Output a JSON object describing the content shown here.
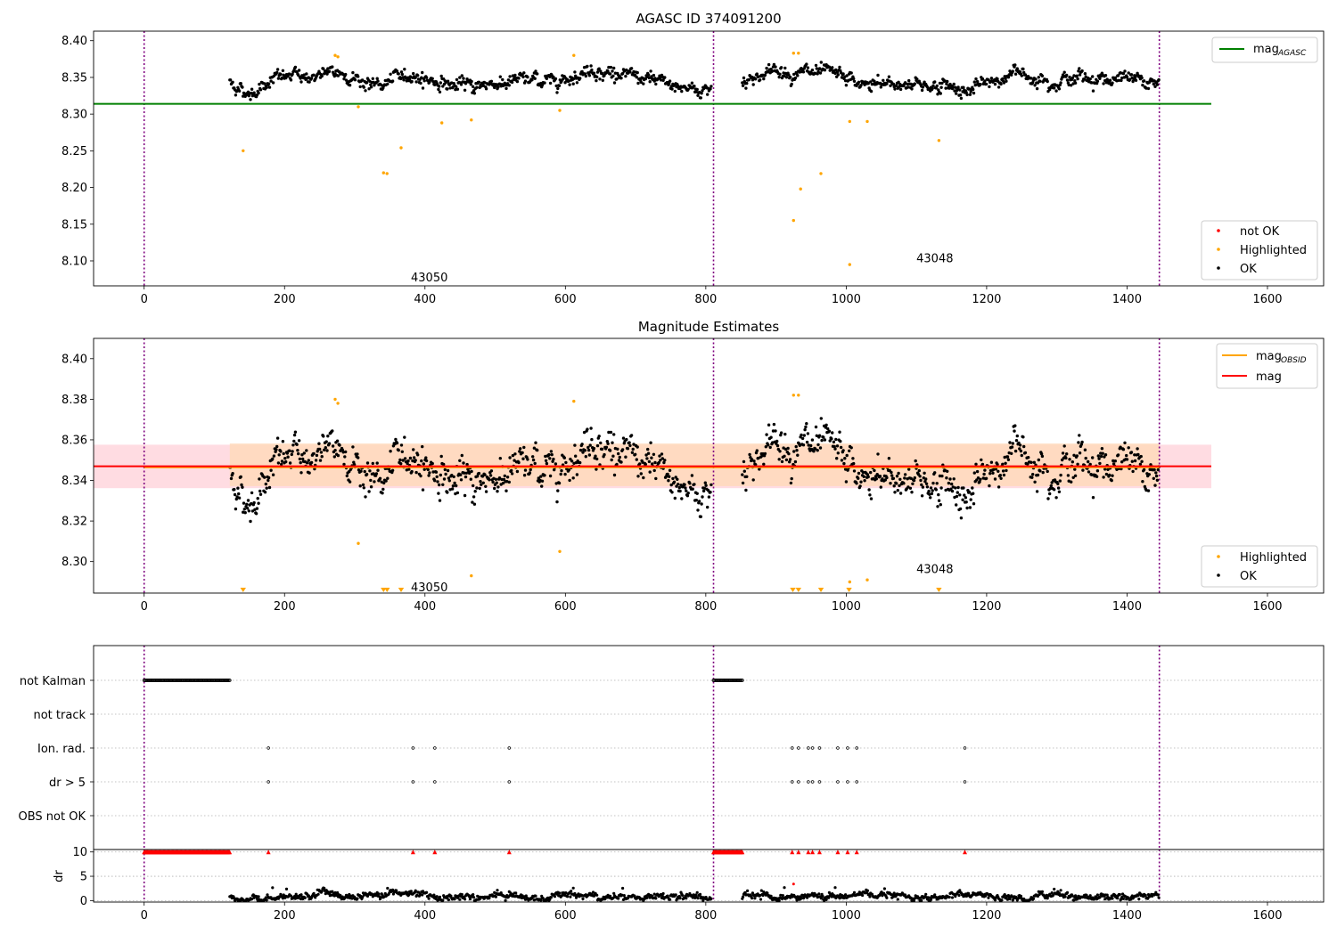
{
  "colors": {
    "ok": "#000000",
    "highlighted": "#ffa500",
    "not_ok": "#ff0000",
    "mag_agasc": "#008000",
    "mag_obsid": "#ffa500",
    "mag": "#ff0000",
    "obs_boundary": "#800080",
    "band_obsid": "#ffdab9",
    "band_mag": "#ffc0cb"
  },
  "chart_data": [
    {
      "type": "scatter",
      "title": "AGASC ID 374091200",
      "xlim": [
        -72,
        1680
      ],
      "ylim": [
        8.066,
        8.413
      ],
      "x_ticks": [
        0,
        200,
        400,
        600,
        800,
        1000,
        1200,
        1400,
        1600
      ],
      "y_ticks": [
        8.1,
        8.15,
        8.2,
        8.25,
        8.3,
        8.35,
        8.4
      ],
      "obs_boundaries": [
        0,
        811,
        1446
      ],
      "obsid_annotations": [
        {
          "label": "43050",
          "x": 380,
          "y": 8.078
        },
        {
          "label": "43048",
          "x": 1100,
          "y": 8.104
        }
      ],
      "lines": [
        {
          "name": "mag_AGASC",
          "label": "mag",
          "subscript": "AGASC",
          "y": 8.314,
          "x_range": [
            -72,
            1520
          ],
          "color": "#008000"
        }
      ],
      "legend_lines": {
        "position": "top-right",
        "entries": [
          {
            "label": "mag",
            "sub": "AGASC",
            "color": "#008000"
          }
        ]
      },
      "legend_points": {
        "position": "bottom-right",
        "entries": [
          {
            "label": "not OK",
            "color": "#ff0000"
          },
          {
            "label": "Highlighted",
            "color": "#ffa500"
          },
          {
            "label": "OK",
            "color": "#000000"
          }
        ]
      },
      "series_ok": {
        "segments": [
          {
            "x_start": 122,
            "x_end": 808,
            "baseline": [
              [
                122,
                8.344
              ],
              [
                150,
                8.327
              ],
              [
                180,
                8.349
              ],
              [
                260,
                8.353
              ],
              [
                290,
                8.355
              ],
              [
                330,
                8.337
              ],
              [
                380,
                8.354
              ],
              [
                450,
                8.337
              ],
              [
                520,
                8.345
              ],
              [
                580,
                8.346
              ],
              [
                640,
                8.362
              ],
              [
                720,
                8.344
              ],
              [
                790,
                8.333
              ],
              [
                808,
                8.337
              ]
            ]
          },
          {
            "x_start": 852,
            "x_end": 1446,
            "baseline": [
              [
                852,
                8.345
              ],
              [
                900,
                8.36
              ],
              [
                940,
                8.356
              ],
              [
                1000,
                8.348
              ],
              [
                1020,
                8.338
              ],
              [
                1100,
                8.342
              ],
              [
                1180,
                8.333
              ],
              [
                1240,
                8.356
              ],
              [
                1300,
                8.348
              ],
              [
                1360,
                8.35
              ],
              [
                1446,
                8.342
              ]
            ]
          }
        ],
        "noise": 0.006
      },
      "series_highlighted": [
        [
          141,
          8.25
        ],
        [
          272,
          8.38
        ],
        [
          276,
          8.378
        ],
        [
          305,
          8.31
        ],
        [
          341,
          8.22
        ],
        [
          346,
          8.219
        ],
        [
          366,
          8.254
        ],
        [
          424,
          8.288
        ],
        [
          466,
          8.292
        ],
        [
          592,
          8.305
        ],
        [
          612,
          8.38
        ],
        [
          925,
          8.383
        ],
        [
          932,
          8.383
        ],
        [
          925,
          8.155
        ],
        [
          935,
          8.198
        ],
        [
          964,
          8.219
        ],
        [
          1005,
          8.29
        ],
        [
          1005,
          8.095
        ],
        [
          1030,
          8.29
        ],
        [
          1132,
          8.264
        ]
      ]
    },
    {
      "type": "scatter",
      "title": "Magnitude Estimates",
      "xlim": [
        -72,
        1680
      ],
      "ylim": [
        8.2845,
        8.41
      ],
      "x_ticks": [
        0,
        200,
        400,
        600,
        800,
        1000,
        1200,
        1400,
        1600
      ],
      "y_ticks": [
        8.3,
        8.32,
        8.34,
        8.36,
        8.38,
        8.4
      ],
      "obs_boundaries": [
        0,
        811,
        1446
      ],
      "obsid_annotations": [
        {
          "label": "43050",
          "x": 380,
          "y": 8.2875
        },
        {
          "label": "43048",
          "x": 1100,
          "y": 8.2965
        }
      ],
      "lines": [
        {
          "name": "mag_OBSID",
          "label": "mag",
          "subscript": "OBSID",
          "y": 8.3465,
          "x_range": [
            0,
            1446
          ],
          "color": "#ffa500"
        },
        {
          "name": "mag",
          "label": "mag",
          "y": 8.347,
          "x_range": [
            -72,
            1520
          ],
          "color": "#ff0000"
        }
      ],
      "bands": [
        {
          "name": "mag_band",
          "y_range": [
            8.3362,
            8.3576
          ],
          "x_range": [
            -72,
            1520
          ],
          "color": "#ffc0cb"
        },
        {
          "name": "obsid_band",
          "y_range": [
            8.3372,
            8.3582
          ],
          "x_range": [
            122,
            1446
          ],
          "color": "#ffdab9"
        }
      ],
      "legend_lines": {
        "position": "top-right",
        "entries": [
          {
            "label": "mag",
            "sub": "OBSID",
            "color": "#ffa500"
          },
          {
            "label": "mag",
            "color": "#ff0000"
          }
        ]
      },
      "legend_points": {
        "position": "bottom-right",
        "entries": [
          {
            "label": "Highlighted",
            "color": "#ffa500"
          },
          {
            "label": "OK",
            "color": "#000000"
          }
        ]
      },
      "series_ok": "same as panel 1",
      "series_highlighted": [
        [
          272,
          8.38
        ],
        [
          276,
          8.378
        ],
        [
          305,
          8.309
        ],
        [
          466,
          8.293
        ],
        [
          592,
          8.305
        ],
        [
          612,
          8.379
        ],
        [
          925,
          8.382
        ],
        [
          932,
          8.382
        ],
        [
          1005,
          8.29
        ],
        [
          1030,
          8.291
        ]
      ],
      "out_of_range_markers": [
        141,
        341,
        346,
        366,
        924,
        932,
        964,
        1004,
        1132
      ]
    },
    {
      "type": "scatter",
      "title": "",
      "xlim": [
        -72,
        1680
      ],
      "categories": [
        "not Kalman",
        "not track",
        "Ion. rad.",
        "dr > 5",
        "OBS not OK"
      ],
      "flags": {
        "not Kalman": {
          "ranges": [
            [
              0,
              122
            ],
            [
              811,
              852
            ]
          ]
        },
        "not track": {
          "points": []
        },
        "Ion. rad.": {
          "points": [
            177,
            383,
            414,
            520,
            923,
            932,
            946,
            952,
            962,
            988,
            1002,
            1015,
            1169
          ]
        },
        "dr > 5": {
          "points": [
            177,
            383,
            414,
            520,
            923,
            932,
            946,
            952,
            962,
            988,
            1002,
            1015,
            1169
          ]
        },
        "OBS not OK": {
          "points": []
        }
      },
      "obs_boundaries": [
        0,
        811,
        1446
      ]
    },
    {
      "type": "scatter",
      "title": "",
      "ylabel": "dr",
      "xlim": [
        -72,
        1680
      ],
      "ylim": [
        -0.3,
        10.5
      ],
      "x_ticks": [
        0,
        200,
        400,
        600,
        800,
        1000,
        1200,
        1400,
        1600
      ],
      "y_ticks": [
        0,
        5,
        10
      ],
      "obs_boundaries": [
        0,
        811,
        1446
      ],
      "clipped_at_10": {
        "ranges": [
          [
            0,
            122
          ],
          [
            811,
            852
          ]
        ],
        "points": [
          177,
          383,
          414,
          520,
          923,
          932,
          946,
          952,
          962,
          988,
          1002,
          1015,
          1169
        ]
      },
      "series_ok": {
        "segments": [
          {
            "x_start": 122,
            "x_end": 808
          },
          {
            "x_start": 852,
            "x_end": 1446
          }
        ],
        "typical": 0.9,
        "max": 2.6
      },
      "series_not_ok": [
        [
          925,
          3.4
        ]
      ]
    }
  ]
}
